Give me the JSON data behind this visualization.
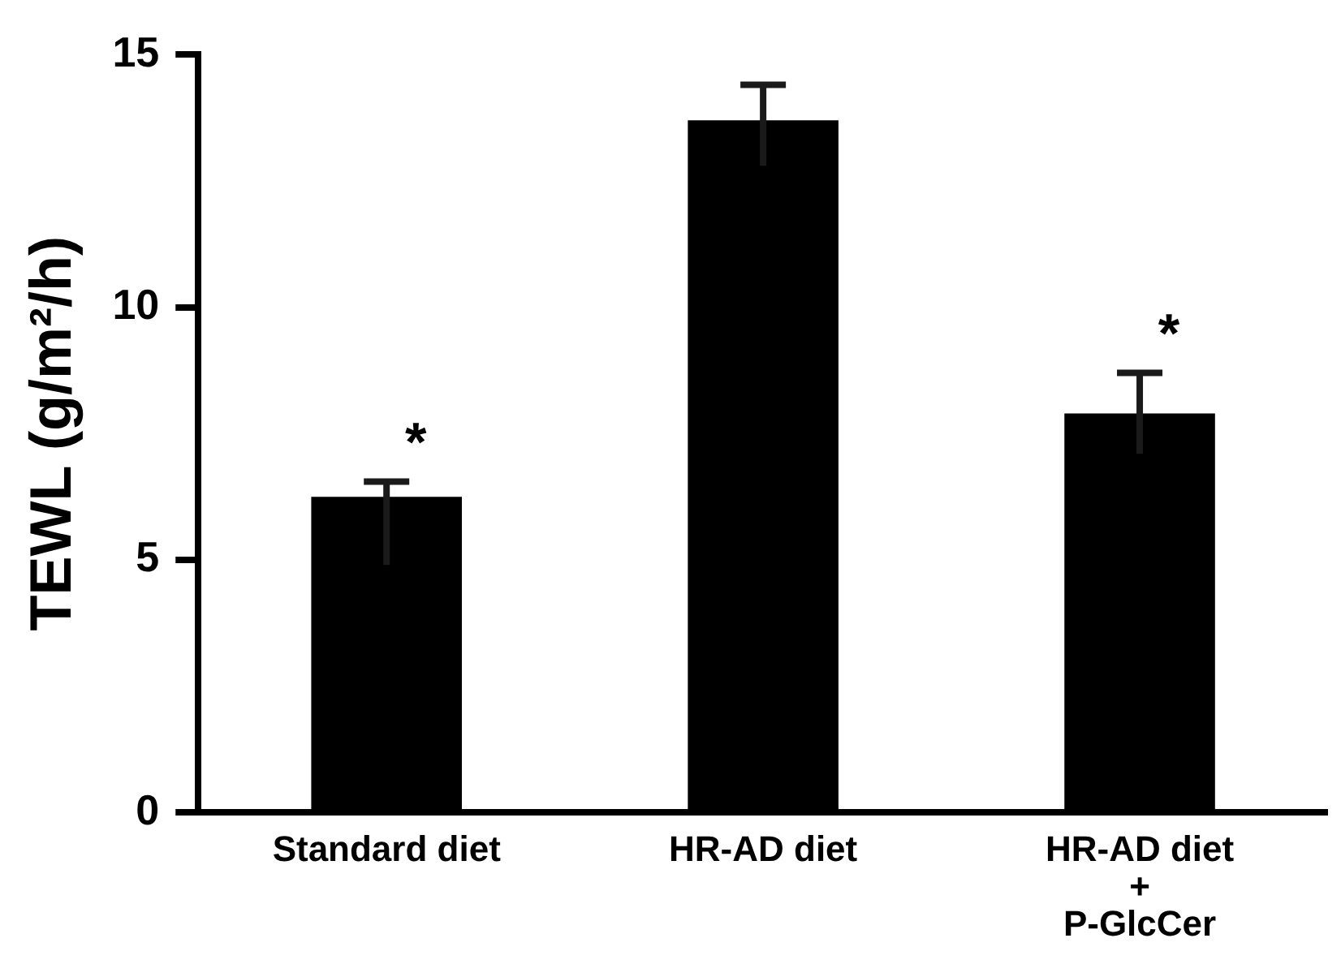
{
  "chart_data": {
    "type": "bar",
    "ylabel": "TEWL (g/m²/h)",
    "categories": [
      "Standard diet",
      "HR-AD diet",
      "HR-AD diet\n+\nP-GlcCer"
    ],
    "values": [
      6.25,
      13.7,
      7.9
    ],
    "color": "#000000",
    "errors": [
      [
        4.9,
        6.55
      ],
      [
        12.8,
        14.4
      ],
      [
        7.1,
        8.7
      ]
    ],
    "ylim": [
      0,
      15
    ],
    "yticks": [
      0,
      5,
      10,
      15
    ],
    "grid": false,
    "legend": false,
    "value_labels": [
      "*",
      null,
      "*"
    ]
  }
}
